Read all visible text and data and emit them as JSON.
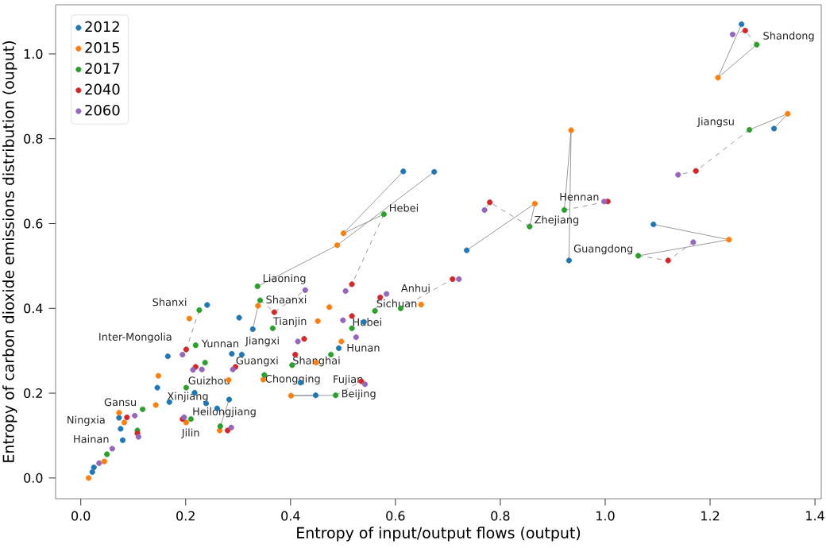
{
  "chart_data": {
    "type": "scatter",
    "xlabel": "Entropy of input/output flows (output)",
    "ylabel": "Entropy of carbon dioxide emissions distribution (ouput)",
    "xlim": [
      -0.048,
      1.412
    ],
    "ylim": [
      -0.049,
      1.116
    ],
    "xticks": [
      {
        "value": 0,
        "label": "0.0"
      },
      {
        "value": 0.2,
        "label": "0.2"
      },
      {
        "value": 0.4,
        "label": "0.4"
      },
      {
        "value": 0.6,
        "label": "0.6"
      },
      {
        "value": 0.8,
        "label": "0.8"
      },
      {
        "value": 1.0,
        "label": "1.0"
      },
      {
        "value": 1.2,
        "label": "1.2"
      },
      {
        "value": 1.4,
        "label": "1.4"
      }
    ],
    "yticks": [
      {
        "value": 0,
        "label": "0.0"
      },
      {
        "value": 0.2,
        "label": "0.2"
      },
      {
        "value": 0.4,
        "label": "0.4"
      },
      {
        "value": 0.6,
        "label": "0.6"
      },
      {
        "value": 0.8,
        "label": "0.8"
      },
      {
        "value": 1.0,
        "label": "1.0"
      }
    ],
    "legend": "top left",
    "grid": false,
    "marker": "circle",
    "series": [
      {
        "type": "line",
        "color": "#808080",
        "line_style": "solid",
        "marker": "none",
        "x": [
          1.26,
          1.215,
          1.289
        ],
        "values": [
          1.07,
          0.944,
          1.022
        ]
      },
      {
        "type": "line",
        "color": "#808080",
        "line_style": "dashed",
        "marker": "none",
        "x": [
          1.289,
          1.267,
          1.243
        ],
        "values": [
          1.022,
          1.055,
          1.046
        ]
      },
      {
        "type": "line",
        "color": "#808080",
        "line_style": "solid",
        "marker": "none",
        "x": [
          1.322,
          1.348,
          1.275
        ],
        "values": [
          0.824,
          0.859,
          0.821
        ]
      },
      {
        "type": "line",
        "color": "#808080",
        "line_style": "dashed",
        "marker": "none",
        "x": [
          1.275,
          1.173,
          1.139
        ],
        "values": [
          0.821,
          0.724,
          0.715
        ]
      },
      {
        "type": "line",
        "color": "#808080",
        "line_style": "solid",
        "marker": "none",
        "x": [
          0.931,
          0.935,
          0.922
        ],
        "values": [
          0.513,
          0.82,
          0.632
        ]
      },
      {
        "type": "line",
        "color": "#808080",
        "line_style": "dashed",
        "marker": "none",
        "x": [
          0.922,
          1.005,
          0.998
        ],
        "values": [
          0.632,
          0.652,
          0.652
        ]
      },
      {
        "type": "line",
        "color": "#808080",
        "line_style": "solid",
        "marker": "none",
        "x": [
          0.736,
          0.866,
          0.856
        ],
        "values": [
          0.537,
          0.647,
          0.593
        ]
      },
      {
        "type": "line",
        "color": "#808080",
        "line_style": "dashed",
        "marker": "none",
        "x": [
          0.856,
          0.78,
          0.77
        ],
        "values": [
          0.593,
          0.65,
          0.632
        ]
      },
      {
        "type": "line",
        "color": "#808080",
        "line_style": "solid",
        "marker": "none",
        "x": [
          1.092,
          1.236,
          1.063
        ],
        "values": [
          0.598,
          0.562,
          0.524
        ]
      },
      {
        "type": "line",
        "color": "#808080",
        "line_style": "dashed",
        "marker": "none",
        "x": [
          1.063,
          1.12,
          1.168
        ],
        "values": [
          0.524,
          0.513,
          0.556
        ]
      },
      {
        "type": "line",
        "color": "#808080",
        "line_style": "solid",
        "marker": "none",
        "x": [
          0.615,
          0.501,
          0.578
        ],
        "values": [
          0.723,
          0.577,
          0.622
        ]
      },
      {
        "type": "line",
        "color": "#808080",
        "line_style": "dashed",
        "marker": "none",
        "x": [
          0.578,
          0.517,
          0.505
        ],
        "values": [
          0.622,
          0.457,
          0.441
        ]
      },
      {
        "type": "line",
        "color": "#808080",
        "line_style": "solid",
        "marker": "none",
        "x": [
          0.674,
          0.489,
          0.337
        ],
        "values": [
          0.722,
          0.549,
          0.452
        ]
      },
      {
        "type": "line",
        "color": "#808080",
        "line_style": "solid",
        "marker": "none",
        "x": [
          0.328,
          0.338,
          0.342
        ],
        "values": [
          0.351,
          0.406,
          0.419
        ]
      },
      {
        "type": "line",
        "color": "#808080",
        "line_style": "dashed",
        "marker": "none",
        "x": [
          0.342,
          0.369,
          0.428
        ],
        "values": [
          0.419,
          0.391,
          0.443
        ]
      },
      {
        "type": "line",
        "color": "#808080",
        "line_style": "dashed",
        "marker": "none",
        "x": [
          0.226,
          0.201,
          0.194
        ],
        "values": [
          0.396,
          0.303,
          0.291
        ]
      },
      {
        "type": "line",
        "color": "#808080",
        "line_style": "solid",
        "marker": "none",
        "x": [
          0.448,
          0.401,
          0.486
        ],
        "values": [
          0.195,
          0.194,
          0.195
        ]
      },
      {
        "type": "line",
        "color": "#808080",
        "line_style": "dashed",
        "marker": "none",
        "x": [
          0.486,
          0.535,
          0.542
        ],
        "values": [
          0.195,
          0.228,
          0.221
        ]
      },
      {
        "type": "line",
        "color": "#808080",
        "line_style": "solid",
        "marker": "none",
        "x": [
          0.283,
          0.266
        ],
        "values": [
          0.185,
          0.122
        ]
      },
      {
        "type": "line",
        "color": "#808080",
        "line_style": "dashed",
        "marker": "none",
        "x": [
          0.561,
          0.571,
          0.583
        ],
        "values": [
          0.394,
          0.426,
          0.434
        ]
      },
      {
        "type": "line",
        "color": "#808080",
        "line_style": "dashed",
        "marker": "none",
        "x": [
          0.61,
          0.709,
          0.721
        ],
        "values": [
          0.4,
          0.469,
          0.469
        ]
      },
      {
        "name": "2012",
        "color": "#1f77b4",
        "x": [
          1.26,
          1.322,
          0.931,
          0.736,
          1.092,
          0.615,
          0.674,
          0.328,
          0.241,
          0.302,
          0.288,
          0.307,
          0.166,
          0.146,
          0.217,
          0.169,
          0.239,
          0.26,
          0.283,
          0.448,
          0.419,
          0.492,
          0.54,
          0.073,
          0.076,
          0.08,
          0.025,
          0.022
        ],
        "values": [
          1.07,
          0.824,
          0.513,
          0.537,
          0.598,
          0.723,
          0.722,
          0.351,
          0.408,
          0.378,
          0.293,
          0.291,
          0.287,
          0.213,
          0.201,
          0.179,
          0.176,
          0.164,
          0.185,
          0.195,
          0.225,
          0.306,
          0.368,
          0.142,
          0.116,
          0.089,
          0.025,
          0.014
        ]
      },
      {
        "name": "2015",
        "color": "#ff7f0e",
        "x": [
          1.215,
          1.348,
          0.935,
          0.866,
          1.236,
          0.501,
          0.489,
          0.338,
          0.207,
          0.282,
          0.348,
          0.143,
          0.148,
          0.201,
          0.265,
          0.401,
          0.452,
          0.474,
          0.497,
          0.449,
          0.649,
          0.073,
          0.083,
          0.045,
          0.015
        ],
        "values": [
          0.944,
          0.859,
          0.82,
          0.647,
          0.562,
          0.577,
          0.549,
          0.406,
          0.376,
          0.231,
          0.232,
          0.172,
          0.241,
          0.131,
          0.112,
          0.194,
          0.37,
          0.403,
          0.322,
          0.272,
          0.409,
          0.154,
          0.131,
          0.039,
          0.0
        ]
      },
      {
        "name": "2017",
        "color": "#2ca02c",
        "x": [
          1.289,
          1.275,
          0.922,
          0.856,
          1.063,
          0.578,
          0.337,
          0.342,
          0.226,
          0.366,
          0.219,
          0.237,
          0.35,
          0.201,
          0.118,
          0.21,
          0.266,
          0.486,
          0.477,
          0.403,
          0.517,
          0.561,
          0.61,
          0.108,
          0.05
        ],
        "values": [
          1.022,
          0.821,
          0.632,
          0.593,
          0.524,
          0.622,
          0.452,
          0.419,
          0.396,
          0.353,
          0.313,
          0.272,
          0.243,
          0.213,
          0.162,
          0.139,
          0.122,
          0.195,
          0.291,
          0.266,
          0.353,
          0.394,
          0.4,
          0.112,
          0.056
        ]
      },
      {
        "name": "2040",
        "color": "#d62728",
        "x": [
          1.267,
          1.173,
          1.005,
          0.78,
          1.12,
          0.517,
          0.709,
          0.369,
          0.201,
          0.295,
          0.219,
          0.194,
          0.28,
          0.535,
          0.409,
          0.426,
          0.517,
          0.571,
          0.088,
          0.108
        ],
        "values": [
          1.055,
          0.724,
          0.652,
          0.65,
          0.513,
          0.457,
          0.469,
          0.391,
          0.303,
          0.262,
          0.262,
          0.139,
          0.112,
          0.228,
          0.291,
          0.328,
          0.382,
          0.426,
          0.143,
          0.105
        ]
      },
      {
        "name": "2060",
        "color": "#9467bd",
        "x": [
          1.243,
          1.139,
          0.998,
          0.77,
          1.168,
          0.505,
          0.721,
          0.428,
          0.194,
          0.29,
          0.231,
          0.214,
          0.197,
          0.287,
          0.542,
          0.414,
          0.5,
          0.525,
          0.583,
          0.103,
          0.11,
          0.06,
          0.035
        ],
        "values": [
          1.046,
          0.715,
          0.652,
          0.632,
          0.556,
          0.441,
          0.469,
          0.443,
          0.291,
          0.256,
          0.256,
          0.255,
          0.143,
          0.119,
          0.221,
          0.322,
          0.372,
          0.332,
          0.434,
          0.147,
          0.097,
          0.069,
          0.035
        ]
      }
    ],
    "annotations": [
      {
        "text": "Shandong",
        "x": 1.291,
        "y": 1.026
      },
      {
        "text": "Jiangsu",
        "x": 1.276,
        "y": 0.824
      },
      {
        "text": "Hennan",
        "x": 0.921,
        "y": 0.633
      },
      {
        "text": "Zhejiang",
        "x": 0.855,
        "y": 0.592
      },
      {
        "text": "Guangdong",
        "x": 1.064,
        "y": 0.524
      },
      {
        "text": "Hebei",
        "x": 0.578,
        "y": 0.622
      },
      {
        "text": "Liaoning",
        "x": 0.337,
        "y": 0.454
      },
      {
        "text": "Shaanxi",
        "x": 0.343,
        "y": 0.421
      },
      {
        "text": "Shanxi",
        "x": 0.224,
        "y": 0.4
      },
      {
        "text": "Tianjin",
        "x": 0.366,
        "y": 0.353
      },
      {
        "text": "Inter-Mongolia",
        "x": 0.219,
        "y": 0.316
      },
      {
        "text": "Jiangxi",
        "x": 0.414,
        "y": 0.322
      },
      {
        "text": "Hunan",
        "x": 0.497,
        "y": 0.322
      },
      {
        "text": "Hubei",
        "x": 0.517,
        "y": 0.353
      },
      {
        "text": "Sichuan",
        "x": 0.563,
        "y": 0.397
      },
      {
        "text": "Anhui",
        "x": 0.61,
        "y": 0.403
      },
      {
        "text": "Yunnan",
        "x": 0.239,
        "y": 0.272
      },
      {
        "text": "Guangxi",
        "x": 0.295,
        "y": 0.26
      },
      {
        "text": "Shanghai",
        "x": 0.403,
        "y": 0.26
      },
      {
        "text": "Fujian",
        "x": 0.48,
        "y": 0.291
      },
      {
        "text": "Chongqing",
        "x": 0.351,
        "y": 0.247
      },
      {
        "text": "Guizhou",
        "x": 0.204,
        "y": 0.215
      },
      {
        "text": "Beijing",
        "x": 0.487,
        "y": 0.197
      },
      {
        "text": "Xinjiang",
        "x": 0.164,
        "y": 0.176
      },
      {
        "text": "Gansu",
        "x": 0.12,
        "y": 0.164
      },
      {
        "text": "Heilongjiang",
        "x": 0.212,
        "y": 0.14
      },
      {
        "text": "Jilin",
        "x": 0.268,
        "y": 0.12
      },
      {
        "text": "Ningxia",
        "x": 0.073,
        "y": 0.12
      },
      {
        "text": "Hainan",
        "x": 0.073,
        "y": 0.107
      }
    ]
  }
}
